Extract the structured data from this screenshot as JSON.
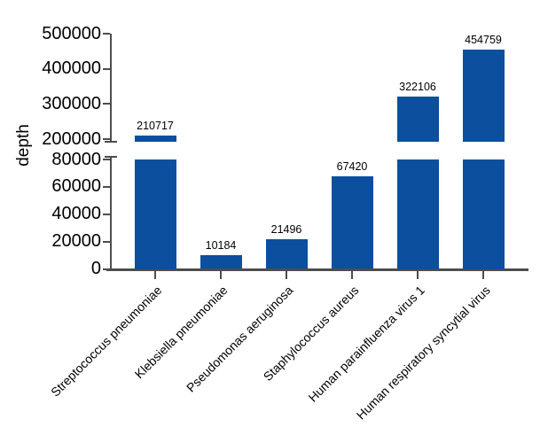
{
  "figure": {
    "background": "#ffffff"
  },
  "chart_data": {
    "type": "bar",
    "title": "",
    "xlabel": "",
    "ylabel": "depth",
    "categories": [
      "Streptococcus pneumoniae",
      "Klebsiella pneumoniae",
      "Pseudomonas aeruginosa",
      "Staphylococcus aureus",
      "Human parainfluenza virus 1",
      "Human respiratory syncytial virus"
    ],
    "values": [
      210717,
      10184,
      21496,
      67420,
      322106,
      454759
    ],
    "bar_value_labels": [
      "210717",
      "10184",
      "21496",
      "67420",
      "322106",
      "454759"
    ],
    "bar_color": "#0b4f9e",
    "axis_color": "#4d4d4d",
    "text_color": "#000000",
    "grid": false,
    "legend": null,
    "y_axis": {
      "broken": true,
      "lower_segment": {
        "range": [
          0,
          80000
        ],
        "ticks": [
          0,
          20000,
          40000,
          60000,
          80000
        ]
      },
      "upper_segment": {
        "range": [
          200000,
          500000
        ],
        "ticks": [
          200000,
          300000,
          400000,
          500000
        ]
      }
    }
  }
}
